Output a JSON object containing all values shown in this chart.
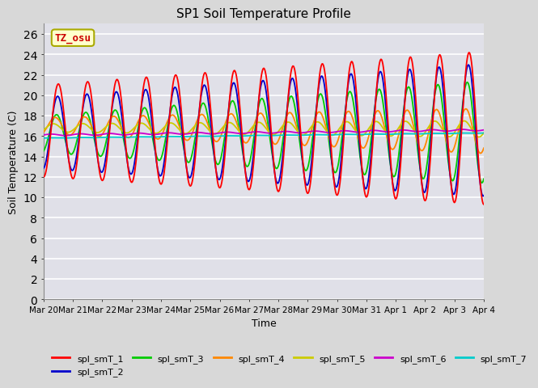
{
  "title": "SP1 Soil Temperature Profile",
  "xlabel": "Time",
  "ylabel": "Soil Temperature (C)",
  "ylim": [
    0,
    27
  ],
  "yticks": [
    0,
    2,
    4,
    6,
    8,
    10,
    12,
    14,
    16,
    18,
    20,
    22,
    24,
    26
  ],
  "fig_bg_color": "#d8d8d8",
  "plot_bg_color": "#e0e0e8",
  "annotation_text": "TZ_osu",
  "annotation_bg": "#ffffcc",
  "annotation_border": "#aaaa00",
  "annotation_text_color": "#cc0000",
  "series_colors": {
    "spl_smT_1": "#ff0000",
    "spl_smT_2": "#0000cc",
    "spl_smT_3": "#00cc00",
    "spl_smT_4": "#ff8800",
    "spl_smT_5": "#cccc00",
    "spl_smT_6": "#cc00cc",
    "spl_smT_7": "#00cccc"
  },
  "legend_labels": [
    "spl_smT_1",
    "spl_smT_2",
    "spl_smT_3",
    "spl_smT_4",
    "spl_smT_5",
    "spl_smT_6",
    "spl_smT_7"
  ],
  "x_tick_labels": [
    "Mar 20",
    "Mar 21",
    "Mar 22",
    "Mar 23",
    "Mar 24",
    "Mar 25",
    "Mar 26",
    "Mar 27",
    "Mar 28",
    "Mar 29",
    "Mar 30",
    "Mar 31",
    "Apr 1",
    "Apr 2",
    "Apr 3",
    "Apr 4"
  ],
  "n_days": 15,
  "points_per_day": 48,
  "grid_color": "#c8c8d0",
  "linewidth": 1.3
}
